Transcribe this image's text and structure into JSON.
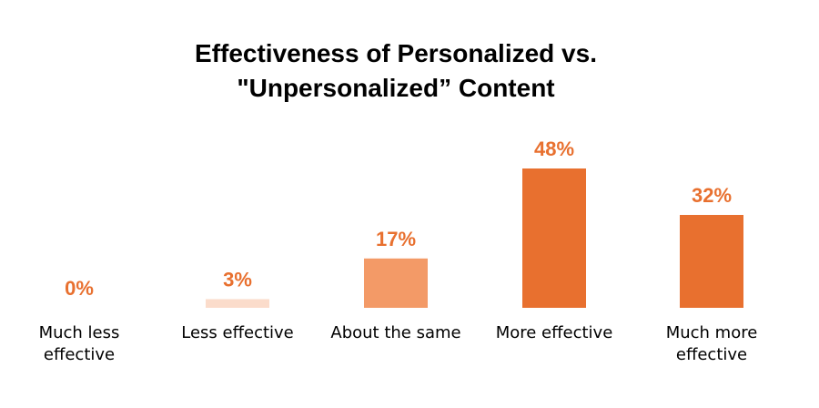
{
  "chart_data": {
    "type": "bar",
    "title_lines": [
      "Effectiveness of Personalized vs.",
      "\"Unpersonalized” Content"
    ],
    "categories": [
      [
        "Much less",
        "effective"
      ],
      [
        "Less effective"
      ],
      [
        "About the same"
      ],
      [
        "More effective"
      ],
      [
        "Much more",
        "effective"
      ]
    ],
    "values": [
      0,
      3,
      17,
      48,
      32
    ],
    "value_labels": [
      "0%",
      "3%",
      "17%",
      "48%",
      "32%"
    ],
    "bar_colors": [
      "#FBDCCB",
      "#FBDCCB",
      "#F39A67",
      "#E8702F",
      "#E8702F"
    ],
    "label_color": "#E8702F",
    "ylim": [
      0,
      48
    ],
    "grid": false,
    "legend": "none"
  }
}
